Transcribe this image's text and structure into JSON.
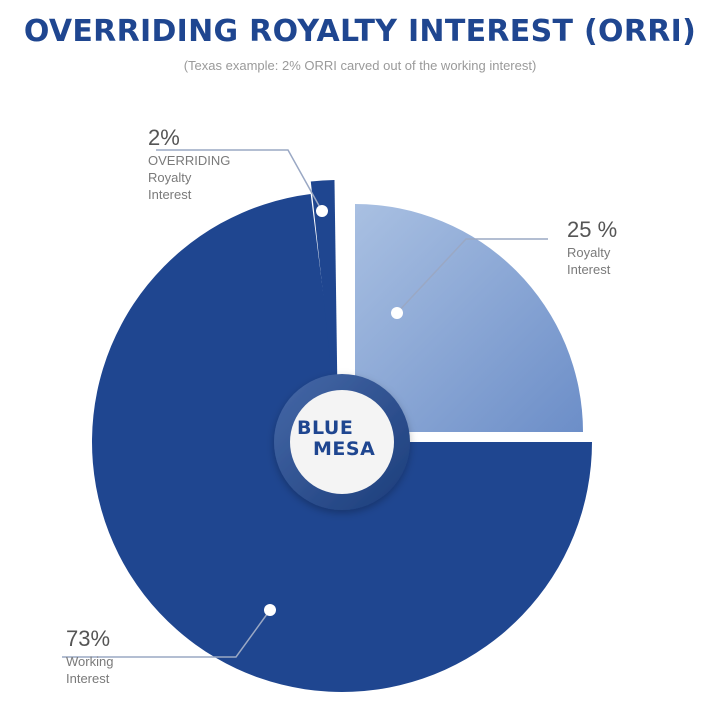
{
  "chart_data": {
    "type": "pie",
    "title": "OVERRIDING ROYALTY INTEREST (ORRI)",
    "subtitle": "(Texas example: 2% ORRI carved out of the working interest)",
    "slices": [
      {
        "key": "royalty",
        "value": 25,
        "value_label": "25 %",
        "label_lines": [
          "Royalty",
          "Interest"
        ],
        "color": "#7f9fd0"
      },
      {
        "key": "working",
        "value": 73,
        "value_label": "73%",
        "label_lines": [
          "Working",
          "Interest"
        ],
        "color": "#1f4690"
      },
      {
        "key": "orri",
        "value": 2,
        "value_label": "2%",
        "label_lines": [
          "OVERRIDING",
          "Royalty",
          "Interest"
        ],
        "color": "#1f4690"
      }
    ]
  },
  "logo": {
    "line1": "BLUE",
    "line2": "MESA"
  },
  "colors": {
    "title": "#1f4690",
    "subtitle": "#9a9a9a",
    "label_text": "#7a7a7a",
    "value_text": "#555555",
    "leader": "#9aa8c4"
  }
}
